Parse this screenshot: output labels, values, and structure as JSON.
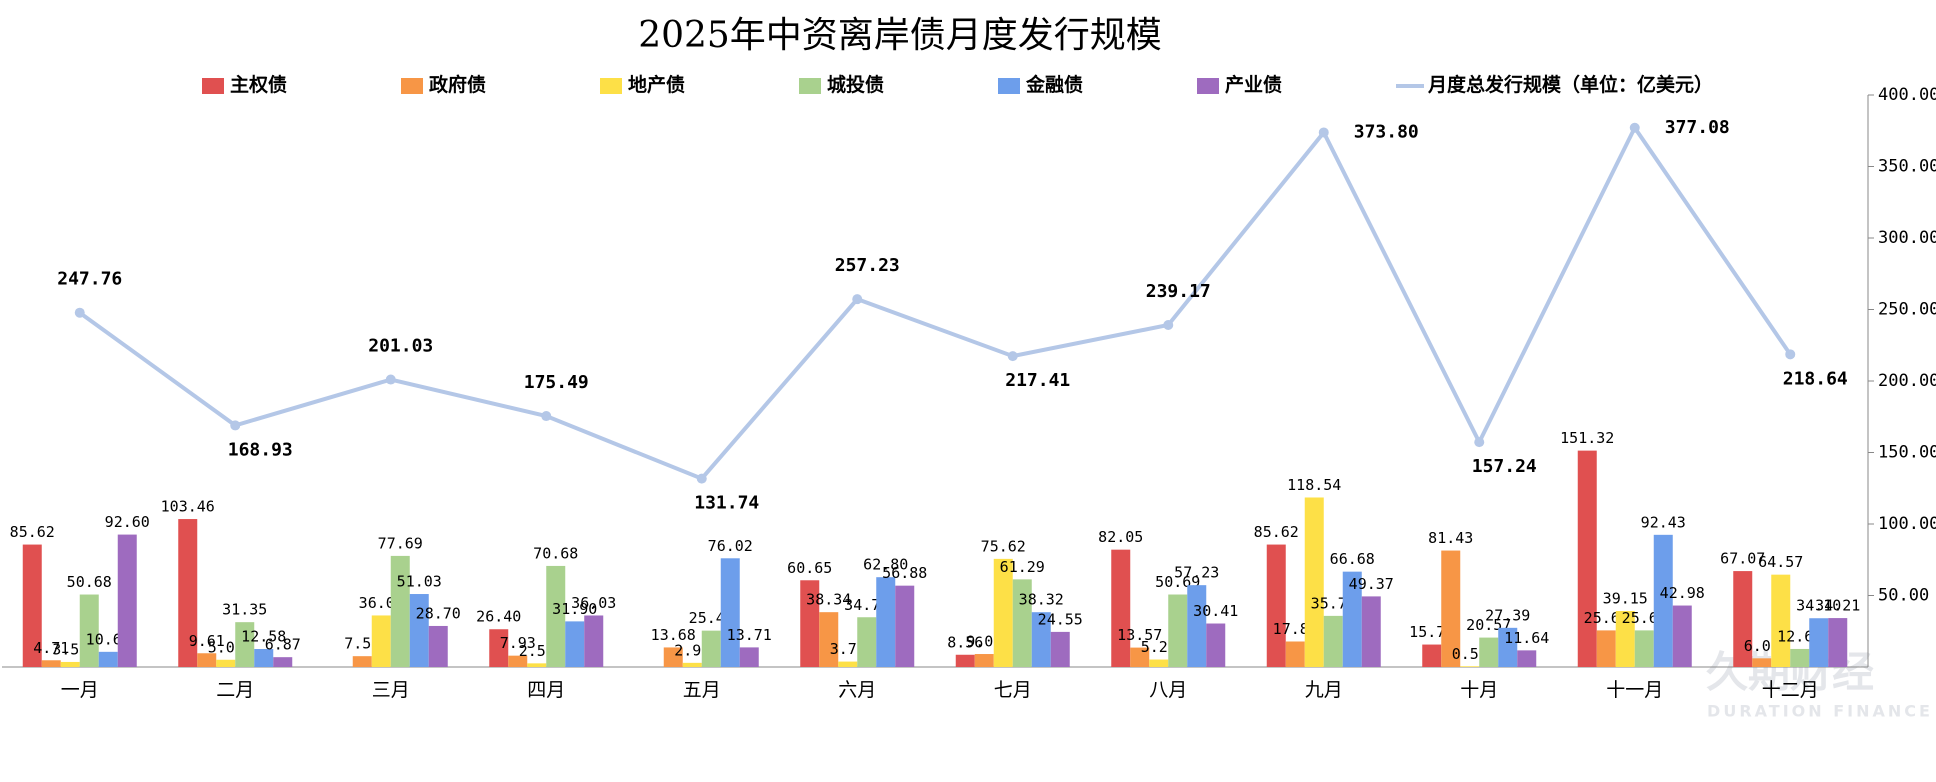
{
  "chart_data": {
    "type": "bar+line",
    "title": "2025年中资离岸债月度发行规模",
    "watermark": [
      "久期财经",
      "DURATION FINANCE"
    ],
    "categories": [
      "一月",
      "二月",
      "三月",
      "四月",
      "五月",
      "六月",
      "七月",
      "八月",
      "九月",
      "十月",
      "十一月",
      "十二月"
    ],
    "ylim": [
      0,
      400
    ],
    "yticks": [
      {
        "value": 50,
        "label": "50.00"
      },
      {
        "value": 100,
        "label": "100.00"
      },
      {
        "value": 150,
        "label": "150.00"
      },
      {
        "value": 200,
        "label": "200.00"
      },
      {
        "value": 250,
        "label": "250.00"
      },
      {
        "value": 300,
        "label": "300.00"
      },
      {
        "value": 350,
        "label": "350.00"
      },
      {
        "value": 400,
        "label": "400.00"
      }
    ],
    "series": [
      {
        "name": "主权债",
        "color": "#e05050",
        "values": [
          85.62,
          103.46,
          null,
          26.4,
          null,
          60.65,
          8.56,
          82.05,
          85.62,
          15.7,
          151.32,
          67.07
        ],
        "value_labels": [
          "85.62",
          "103.46",
          null,
          "26.40",
          null,
          "60.65",
          "8.56",
          "82.05",
          "85.62",
          "15.70",
          "151.32",
          "67.07"
        ]
      },
      {
        "name": "政府债",
        "color": "#f79646",
        "values": [
          4.71,
          9.61,
          7.57,
          7.93,
          13.68,
          38.34,
          9.07,
          13.57,
          17.84,
          81.43,
          25.6,
          6.07
        ],
        "value_labels": [
          "4.71",
          "9.61",
          "7.57",
          "7.93",
          "13.68",
          "38.34",
          "9.07",
          "13.57",
          "17.84",
          "81.43",
          "25.60",
          "6.07"
        ]
      },
      {
        "name": "地产债",
        "color": "#fde047",
        "values": [
          3.53,
          5.06,
          36.05,
          2.55,
          2.91,
          3.79,
          75.62,
          5.22,
          118.54,
          0.5,
          39.15,
          64.57
        ],
        "value_labels": [
          "3.53",
          "5.06",
          "36.05",
          "2.55",
          "2.91",
          "3.79",
          "75.62",
          "5.22",
          "118.54",
          "0.50",
          "39.15",
          "64.57"
        ]
      },
      {
        "name": "城投债",
        "color": "#a9d18e",
        "values": [
          50.68,
          31.35,
          77.69,
          70.68,
          25.42,
          34.79,
          61.29,
          50.69,
          35.75,
          20.57,
          25.6,
          12.62
        ],
        "value_labels": [
          "50.68",
          "31.35",
          "77.69",
          "70.68",
          "25.42",
          "34.79",
          "61.29",
          "50.69",
          "35.75",
          "20.57",
          "25.60",
          "12.62"
        ]
      },
      {
        "name": "金融债",
        "color": "#6d9eeb",
        "values": [
          10.61,
          12.58,
          51.03,
          31.9,
          76.02,
          62.8,
          38.32,
          57.23,
          66.68,
          27.39,
          92.43,
          34.1
        ],
        "value_labels": [
          "10.61",
          "12.58",
          "51.03",
          "31.90",
          "76.02",
          "62.80",
          "38.32",
          "57.23",
          "66.68",
          "27.39",
          "92.43",
          "34.10"
        ]
      },
      {
        "name": "产业债",
        "color": "#9e6bbf",
        "values": [
          92.6,
          6.87,
          28.7,
          36.03,
          13.71,
          56.88,
          24.55,
          30.41,
          49.37,
          11.64,
          42.98,
          34.21
        ],
        "value_labels": [
          "92.60",
          "6.87",
          "28.70",
          "36.03",
          "13.71",
          "56.88",
          "24.55",
          "30.41",
          "49.37",
          "11.64",
          "42.98",
          "34.21"
        ]
      },
      {
        "name": "月度总发行规模（单位：亿美元）",
        "type": "line",
        "color": "#b4c7e7",
        "values": [
          247.76,
          168.93,
          201.03,
          175.49,
          131.74,
          257.23,
          217.41,
          239.17,
          373.8,
          157.24,
          377.08,
          218.64
        ],
        "value_labels": [
          "247.76",
          "168.93",
          "201.03",
          "175.49",
          "131.74",
          "257.23",
          "217.41",
          "239.17",
          "373.80",
          "157.24",
          "377.08",
          "218.64"
        ]
      }
    ]
  }
}
